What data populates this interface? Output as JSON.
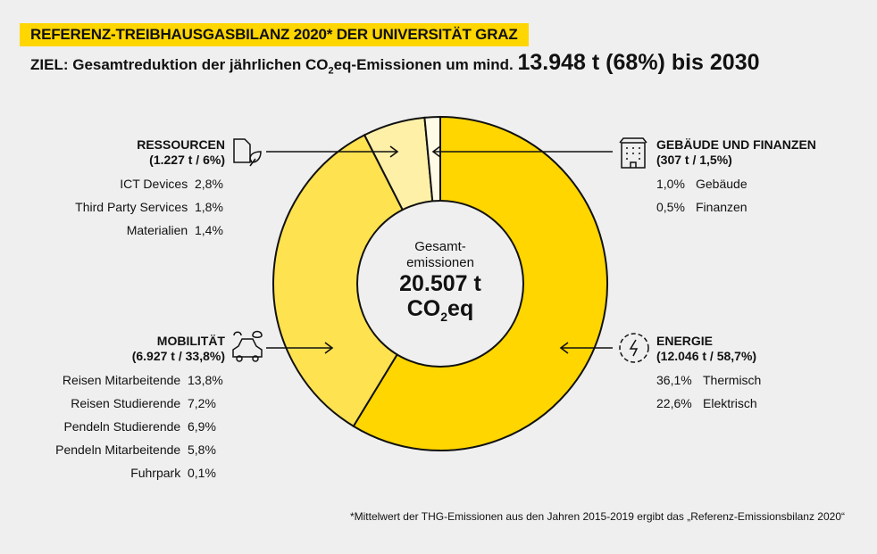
{
  "title": "REFERENZ-TREIBHAUSGASBILANZ 2020* DER UNIVERSITÄT GRAZ",
  "goal": {
    "prefix": "ZIEL: Gesamtreduktion der jährlichen CO",
    "sub": "2",
    "mid": "eq-Emissionen um mind. ",
    "big": "13.948 t (68%) bis 2030"
  },
  "center": {
    "line1": "Gesamt-",
    "line2": "emissionen",
    "value": "20.507 t",
    "unit_a": "CO",
    "unit_sub": "2",
    "unit_b": "eq"
  },
  "groups": {
    "ressourcen": {
      "name": "RESSOURCEN",
      "sub": "(1.227 t / 6%)",
      "items": [
        {
          "label": "ICT Devices",
          "value": "2,8%"
        },
        {
          "label": "Third Party Services",
          "value": "1,8%"
        },
        {
          "label": "Materialien",
          "value": "1,4%"
        }
      ]
    },
    "gebaeude": {
      "name": "GEBÄUDE UND FINANZEN",
      "sub": "(307 t / 1,5%)",
      "items": [
        {
          "label": "Gebäude",
          "value": "1,0%"
        },
        {
          "label": "Finanzen",
          "value": "0,5%"
        }
      ]
    },
    "mobilitaet": {
      "name": "MOBILITÄT",
      "sub": "(6.927 t / 33,8%)",
      "items": [
        {
          "label": "Reisen Mitarbeitende",
          "value": "13,8%"
        },
        {
          "label": "Reisen Studierende",
          "value": "7,2%"
        },
        {
          "label": "Pendeln Studierende",
          "value": "6,9%"
        },
        {
          "label": "Pendeln Mitarbeitende",
          "value": "5,8%"
        },
        {
          "label": "Fuhrpark",
          "value": "0,1%"
        }
      ]
    },
    "energie": {
      "name": "ENERGIE",
      "sub": "(12.046 t / 58,7%)",
      "items": [
        {
          "label": "Thermisch",
          "value": "36,1%"
        },
        {
          "label": "Elektrisch",
          "value": "22,6%"
        }
      ]
    }
  },
  "footnote": "*Mittelwert der THG-Emissionen aus den Jahren 2015-2019 ergibt das „Referenz-Emissionsbilanz 2020“",
  "chart_data": {
    "type": "pie",
    "donut": true,
    "title": "REFERENZ-TREIBHAUSGASBILANZ 2020* DER UNIVERSITÄT GRAZ",
    "total_t": 20507,
    "slices": [
      {
        "name": "Energie",
        "value_t": 12046,
        "percent": 58.7,
        "color": "#ffd600"
      },
      {
        "name": "Mobilität",
        "value_t": 6927,
        "percent": 33.8,
        "color": "#ffe24f"
      },
      {
        "name": "Ressourcen",
        "value_t": 1227,
        "percent": 6,
        "color": "#fff0a8"
      },
      {
        "name": "Gebäude und Finanzen",
        "value_t": 307,
        "percent": 1.5,
        "color": "#fffbe6"
      }
    ],
    "direction": "clockwise from top"
  }
}
